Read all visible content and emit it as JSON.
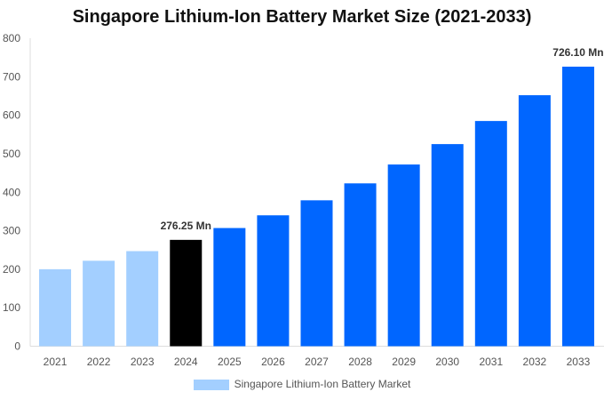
{
  "chart_data": {
    "type": "bar",
    "title": "Singapore Lithium-Ion Battery Market Size (2021-2033)",
    "categories": [
      "2021",
      "2022",
      "2023",
      "2024",
      "2025",
      "2026",
      "2027",
      "2028",
      "2029",
      "2030",
      "2031",
      "2032",
      "2033"
    ],
    "values": [
      200,
      222,
      247,
      276.25,
      307,
      340,
      379,
      423,
      472,
      525,
      585,
      652,
      726.1
    ],
    "bar_colors": [
      "#a3cfff",
      "#a3cfff",
      "#a3cfff",
      "#000000",
      "#0066ff",
      "#0066ff",
      "#0066ff",
      "#0066ff",
      "#0066ff",
      "#0066ff",
      "#0066ff",
      "#0066ff",
      "#0066ff"
    ],
    "data_labels": {
      "3": "276.25 Mn",
      "12": "726.10 Mn"
    },
    "yticks": [
      0,
      100,
      200,
      300,
      400,
      500,
      600,
      700,
      800
    ],
    "ylim": [
      0,
      800
    ],
    "xlabel": "",
    "ylabel": "",
    "grid": false,
    "legend": {
      "position": "bottom",
      "entries": [
        {
          "name": "Singapore Lithium-Ion Battery Market",
          "color": "#a3cfff"
        }
      ]
    }
  }
}
